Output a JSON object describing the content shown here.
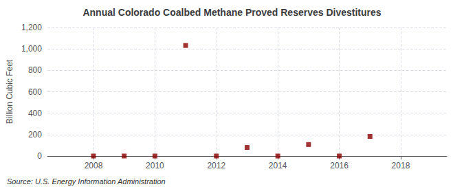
{
  "chart_data": {
    "type": "scatter",
    "title": "Annual Colorado Coalbed Methane Proved Reserves Divestitures",
    "ylabel": "Billion Cubic Feet",
    "annotation": "Source: U.S. Energy Information Administration",
    "x": [
      2008,
      2009,
      2010,
      2011,
      2012,
      2013,
      2014,
      2015,
      2016,
      2017
    ],
    "values": [
      0,
      0,
      0,
      1032,
      0,
      80,
      0,
      107,
      0,
      183
    ],
    "color": "#8b0000",
    "marker": "square",
    "xlim": [
      2006.5,
      2019.5
    ],
    "xticks": [
      2008,
      2010,
      2012,
      2014,
      2016,
      2018
    ],
    "ylim": [
      0,
      1200
    ],
    "yticks": [
      0,
      200,
      400,
      600,
      800,
      {
        "value": 1000,
        "label": "1,000"
      },
      {
        "value": 1200,
        "label": "1,200"
      }
    ],
    "grid": true
  }
}
